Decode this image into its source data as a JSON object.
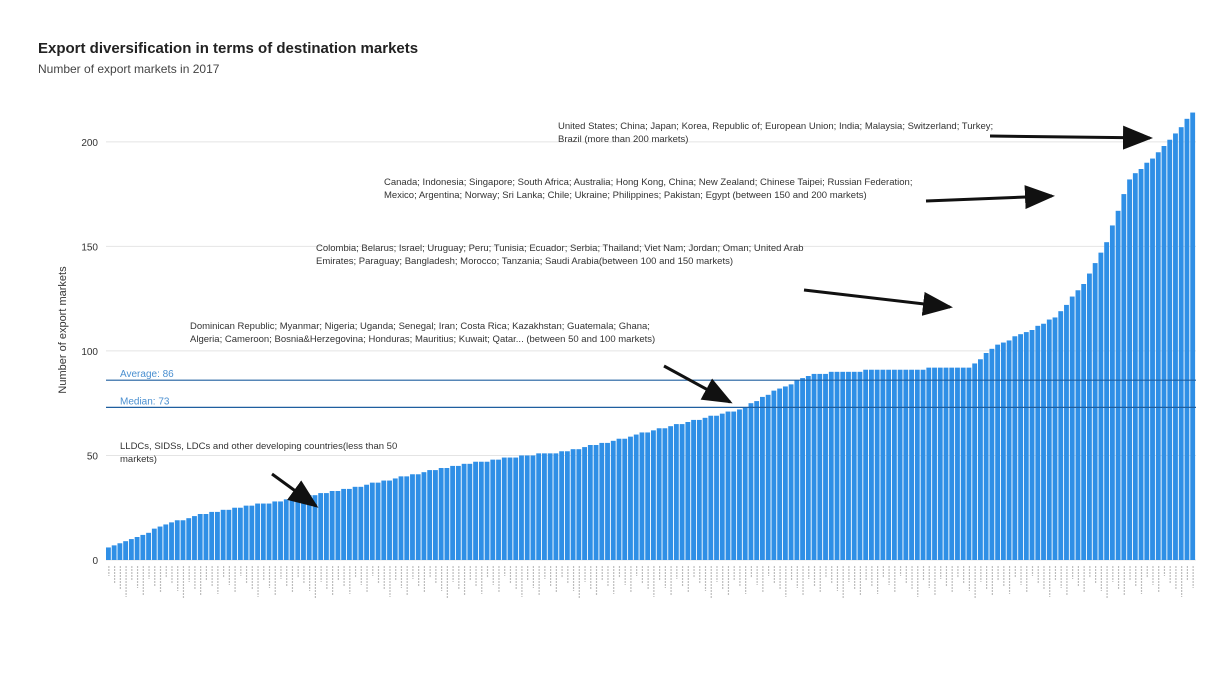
{
  "title": "Export diversification in terms of destination markets",
  "subtitle": "Number of export markets in 2017",
  "colors": {
    "bar": "#2f8fe6",
    "bar_edge": "#1f6fbf",
    "ref_line": "#1f5f9f",
    "ref_text": "#4a8fd0",
    "grid": "#e4e4e4",
    "arrow": "#111111"
  },
  "chart_data": {
    "type": "bar",
    "title": "Export diversification in terms of destination markets",
    "subtitle": "Number of export markets in 2017",
    "xlabel": "",
    "ylabel": "Number of export markets",
    "ylim": [
      0,
      220
    ],
    "yticks": [
      0,
      50,
      100,
      150,
      200
    ],
    "grid": true,
    "legend": "none",
    "bar_count": 190,
    "reference_lines": [
      {
        "label": "Average: 86",
        "value": 86
      },
      {
        "label": "Median: 73",
        "value": 73
      }
    ],
    "annotations": [
      {
        "text": "United States; China; Japan; Korea, Republic of; European Union; India; Malaysia; Switzerland; Turkey; Brazil (more than 200 markets)"
      },
      {
        "text": "Canada; Indonesia; Singapore; South Africa; Australia; Hong Kong, China; New Zealand; Chinese Taipei; Russian Federation; Mexico; Argentina; Norway; Sri Lanka; Chile; Ukraine; Philippines; Pakistan; Egypt (between 150 and 200 markets)"
      },
      {
        "text": "Colombia; Belarus; Israel; Uruguay; Peru; Tunisia; Ecuador; Serbia; Thailand; Viet Nam; Jordan; Oman; United Arab Emirates; Paraguay; Bangladesh; Morocco; Tanzania; Saudi Arabia(between 100 and 150 markets)"
      },
      {
        "text": "Dominican Republic; Myanmar; Nigeria; Uganda; Senegal; Iran; Costa Rica; Kazakhstan; Guatemala; Ghana; Algeria; Cameroon; Bosnia&Herzegovina; Honduras; Mauritius; Kuwait; Qatar... (between 50 and 100 markets)"
      },
      {
        "text": "LLDCs, SIDSs, LDCs and other developing countries(less than 50 markets)"
      }
    ],
    "curve_points": [
      [
        0,
        6
      ],
      [
        3,
        9
      ],
      [
        6,
        12
      ],
      [
        10,
        17
      ],
      [
        15,
        21
      ],
      [
        22,
        25
      ],
      [
        30,
        28
      ],
      [
        40,
        33
      ],
      [
        50,
        39
      ],
      [
        60,
        45
      ],
      [
        70,
        49
      ],
      [
        80,
        52
      ],
      [
        88,
        57
      ],
      [
        98,
        64
      ],
      [
        110,
        72
      ],
      [
        117,
        82
      ],
      [
        123,
        89
      ],
      [
        135,
        91
      ],
      [
        150,
        92
      ],
      [
        155,
        103
      ],
      [
        160,
        109
      ],
      [
        165,
        116
      ],
      [
        170,
        132
      ],
      [
        174,
        152
      ],
      [
        178,
        182
      ],
      [
        182,
        192
      ],
      [
        186,
        204
      ],
      [
        189,
        214
      ]
    ]
  }
}
